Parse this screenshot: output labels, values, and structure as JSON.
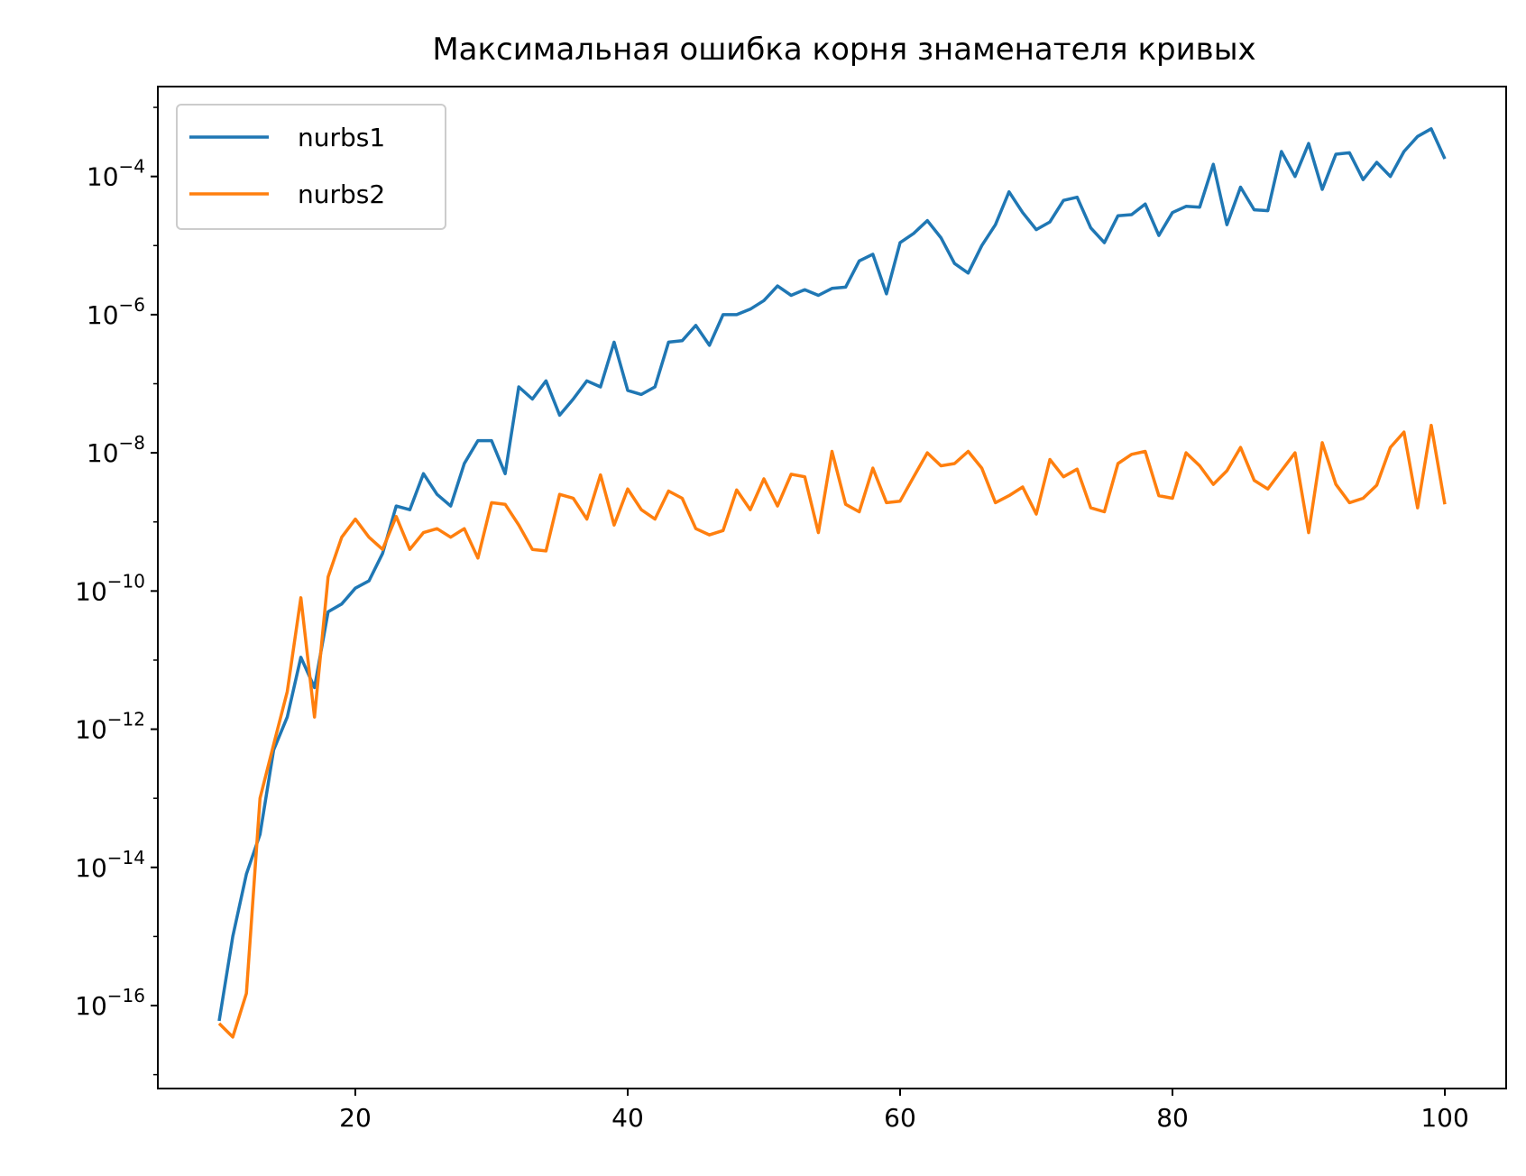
{
  "chart_data": {
    "type": "line",
    "title": "Максимальная ошибка корня знаменателя кривых",
    "xlabel": "",
    "ylabel": "",
    "xscale": "linear",
    "yscale": "log",
    "xlim": [
      5.5,
      104.5
    ],
    "ylim": [
      6.3e-18,
      0.002
    ],
    "x_ticks": [
      20,
      40,
      60,
      80,
      100
    ],
    "x_tick_labels": [
      "20",
      "40",
      "60",
      "80",
      "100"
    ],
    "y_ticks": [
      1e-16,
      1e-14,
      1e-12,
      1e-10,
      1e-08,
      1e-06,
      0.0001
    ],
    "y_tick_labels": [
      {
        "base": "10",
        "exp": "−16"
      },
      {
        "base": "10",
        "exp": "−14"
      },
      {
        "base": "10",
        "exp": "−12"
      },
      {
        "base": "10",
        "exp": "−10"
      },
      {
        "base": "10",
        "exp": "−8"
      },
      {
        "base": "10",
        "exp": "−6"
      },
      {
        "base": "10",
        "exp": "−4"
      }
    ],
    "grid": false,
    "legend_position": "top-left",
    "x": [
      10,
      11,
      12,
      13,
      14,
      15,
      16,
      17,
      18,
      19,
      20,
      21,
      22,
      23,
      24,
      25,
      26,
      27,
      28,
      29,
      30,
      31,
      32,
      33,
      34,
      35,
      36,
      37,
      38,
      39,
      40,
      41,
      42,
      43,
      44,
      45,
      46,
      47,
      48,
      49,
      50,
      51,
      52,
      53,
      54,
      55,
      56,
      57,
      58,
      59,
      60,
      61,
      62,
      63,
      64,
      65,
      66,
      67,
      68,
      69,
      70,
      71,
      72,
      73,
      74,
      75,
      76,
      77,
      78,
      79,
      80,
      81,
      82,
      83,
      84,
      85,
      86,
      87,
      88,
      89,
      90,
      91,
      92,
      93,
      94,
      95,
      96,
      97,
      98,
      99,
      100
    ],
    "series": [
      {
        "name": "nurbs1",
        "color": "#1f77b4",
        "values": [
          6e-17,
          1e-15,
          8e-15,
          3e-14,
          5e-13,
          1.5e-12,
          1.1e-11,
          4e-12,
          5e-11,
          6.5e-11,
          1.1e-10,
          1.4e-10,
          3.5e-10,
          1.7e-09,
          1.5e-09,
          5e-09,
          2.5e-09,
          1.7e-09,
          7e-09,
          1.5e-08,
          1.5e-08,
          5e-09,
          9e-08,
          6e-08,
          1.1e-07,
          3.5e-08,
          6e-08,
          1.1e-07,
          9e-08,
          4e-07,
          8e-08,
          7e-08,
          9e-08,
          4e-07,
          4.2e-07,
          7e-07,
          3.6e-07,
          1e-06,
          1e-06,
          1.2e-06,
          1.6e-06,
          2.6e-06,
          1.9e-06,
          2.3e-06,
          1.9e-06,
          2.4e-06,
          2.5e-06,
          6e-06,
          7.5e-06,
          2e-06,
          1.1e-05,
          1.5e-05,
          2.3e-05,
          1.3e-05,
          5.5e-06,
          4e-06,
          1e-05,
          2e-05,
          6e-05,
          3e-05,
          1.7e-05,
          2.2e-05,
          4.5e-05,
          5e-05,
          1.8e-05,
          1.1e-05,
          2.7e-05,
          2.8e-05,
          4e-05,
          1.4e-05,
          3e-05,
          3.7e-05,
          3.6e-05,
          0.00015,
          2e-05,
          7e-05,
          3.3e-05,
          3.2e-05,
          0.00023,
          0.0001,
          0.0003,
          6.5e-05,
          0.00021,
          0.00022,
          9e-05,
          0.00016,
          0.0001,
          0.00023,
          0.00038,
          0.00049,
          0.00018
        ]
      },
      {
        "name": "nurbs2",
        "color": "#ff7f0e",
        "values": [
          5.5e-17,
          3.5e-17,
          1.5e-16,
          1e-13,
          6e-13,
          3.5e-12,
          8e-11,
          1.5e-12,
          1.6e-10,
          6e-10,
          1.1e-09,
          6e-10,
          4e-10,
          1.2e-09,
          4e-10,
          7e-10,
          8e-10,
          6e-10,
          8e-10,
          3e-10,
          1.9e-09,
          1.8e-09,
          9e-10,
          4e-10,
          3.8e-10,
          2.5e-09,
          2.2e-09,
          1.1e-09,
          4.8e-09,
          9e-10,
          3e-09,
          1.5e-09,
          1.1e-09,
          2.8e-09,
          2.2e-09,
          8e-10,
          6.5e-10,
          7.5e-10,
          2.9e-09,
          1.5e-09,
          4.2e-09,
          1.7e-09,
          4.9e-09,
          4.5e-09,
          7e-10,
          1.05e-08,
          1.8e-09,
          1.4e-09,
          6e-09,
          1.9e-09,
          2e-09,
          4.5e-09,
          1e-08,
          6.5e-09,
          7e-09,
          1.05e-08,
          6e-09,
          1.9e-09,
          2.4e-09,
          3.2e-09,
          1.3e-09,
          8e-09,
          4.5e-09,
          5.8e-09,
          1.6e-09,
          1.4e-09,
          7e-09,
          9.5e-09,
          1.05e-08,
          2.4e-09,
          2.2e-09,
          1e-08,
          6.5e-09,
          3.5e-09,
          5.5e-09,
          1.2e-08,
          4e-09,
          3e-09,
          5.5e-09,
          1e-08,
          7e-10,
          1.4e-08,
          3.5e-09,
          1.9e-09,
          2.2e-09,
          3.4e-09,
          1.2e-08,
          2e-08,
          1.6e-09,
          2.5e-08,
          1.8e-09
        ]
      }
    ]
  }
}
